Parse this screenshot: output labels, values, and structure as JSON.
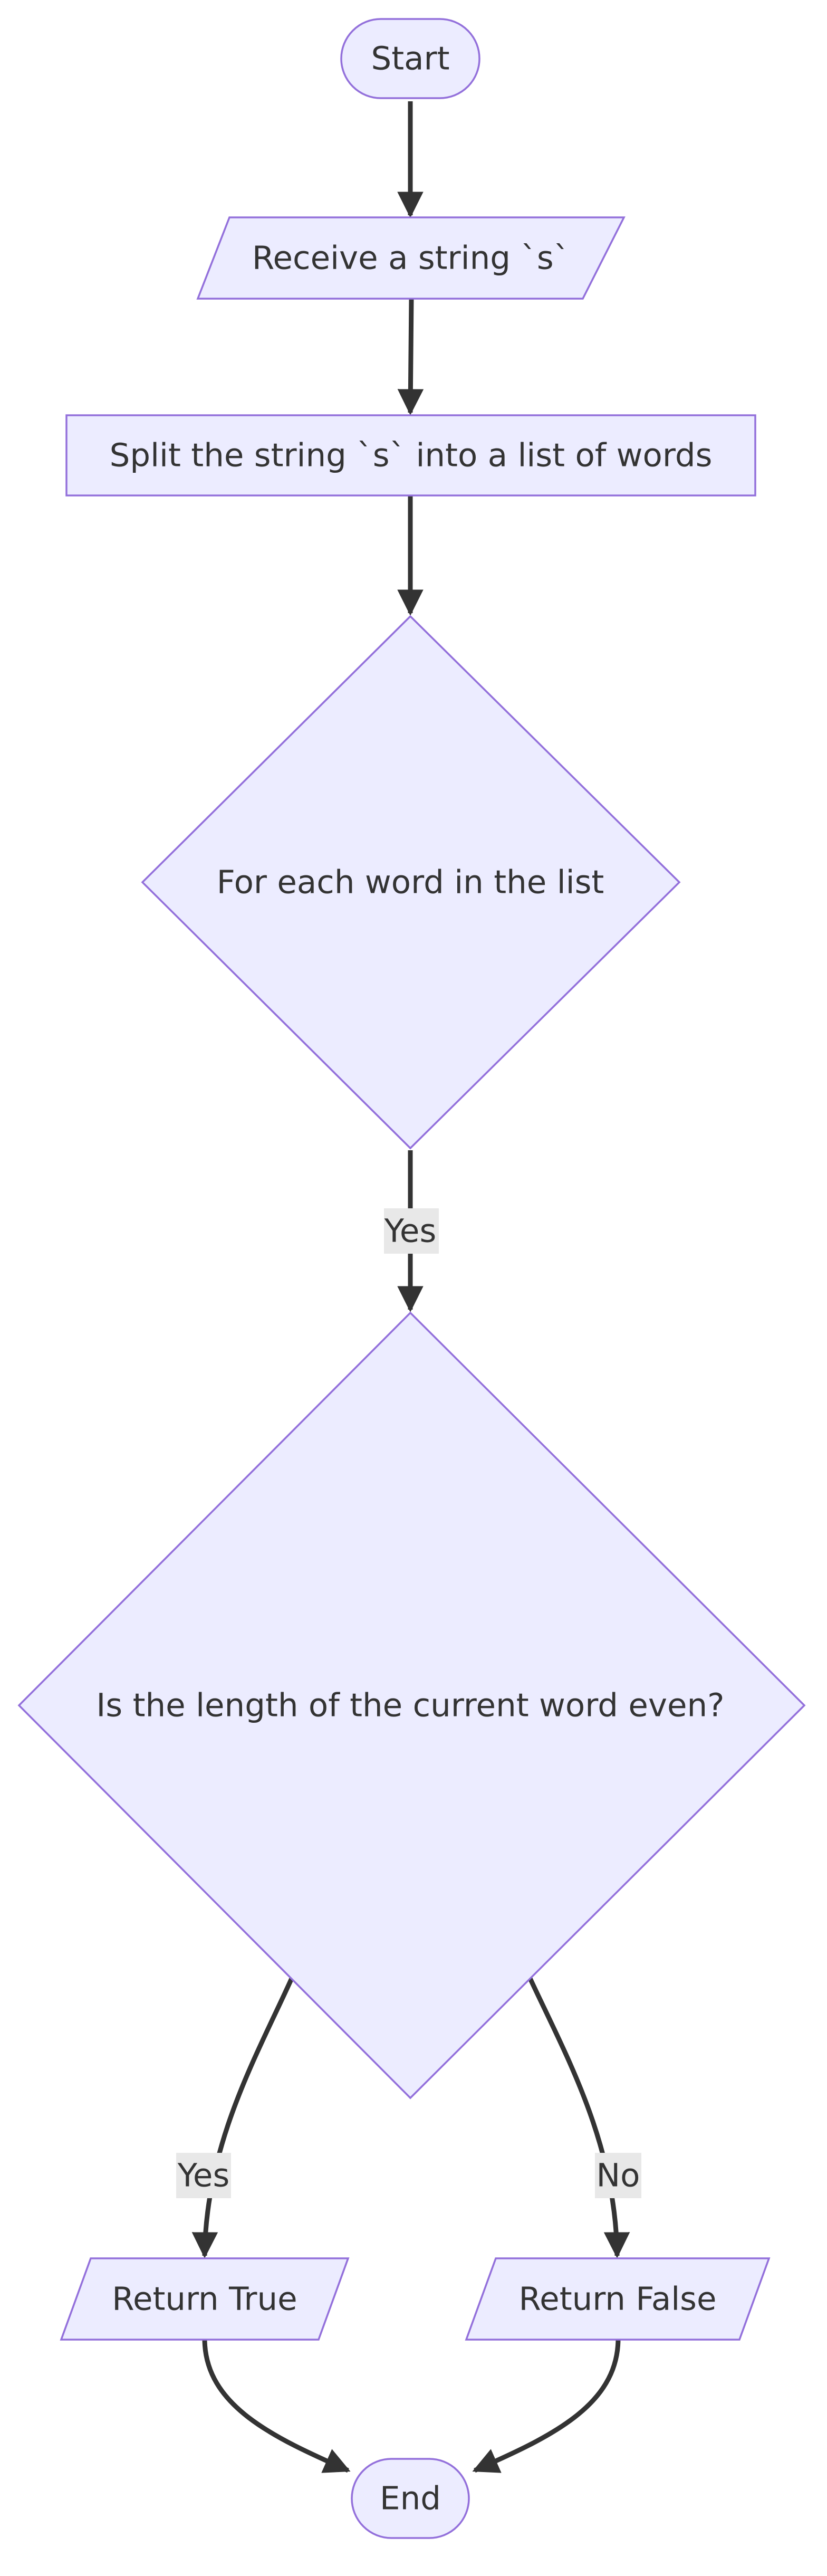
{
  "diagram": {
    "type": "flowchart",
    "nodes": {
      "start": "Start",
      "receive": "Receive a string `s`",
      "split": "Split the string `s` into a list of words",
      "loop": "For each word in the list",
      "check": "Is the length of the current word even?",
      "return_true": "Return True",
      "return_false": "Return False",
      "end": "End"
    },
    "edges": {
      "loop_to_check": "Yes",
      "check_to_true": "Yes",
      "check_to_false": "No"
    }
  },
  "colors": {
    "node_fill": "#ececff",
    "node_stroke": "#9370db",
    "edge": "#333333",
    "label_bg": "#e8e8e8"
  }
}
